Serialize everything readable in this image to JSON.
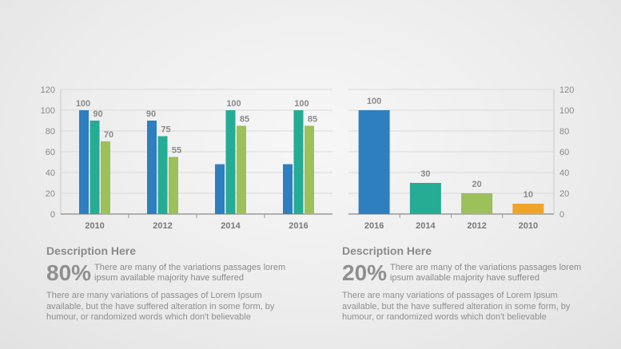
{
  "chart_data": [
    {
      "type": "bar",
      "categories": [
        "2010",
        "2012",
        "2014",
        "2016"
      ],
      "series": [
        {
          "values": [
            100,
            90,
            48,
            48
          ]
        },
        {
          "values": [
            90,
            75,
            100,
            100
          ]
        },
        {
          "values": [
            70,
            55,
            85,
            85
          ]
        }
      ],
      "data_labels": [
        [
          "100",
          "90",
          "",
          ""
        ],
        [
          "90",
          "75",
          "100",
          "100"
        ],
        [
          "70",
          "55",
          "85",
          "85"
        ]
      ],
      "colors": [
        "#2e7fc0",
        "#26ab95",
        "#9cc05a"
      ],
      "yticks": [
        "0",
        "20",
        "40",
        "60",
        "80",
        "100",
        "120"
      ],
      "ylim": [
        0,
        120
      ],
      "yaxis_side": "left",
      "grid": true,
      "title": "",
      "xlabel": "",
      "ylabel": ""
    },
    {
      "type": "bar",
      "categories": [
        "2016",
        "2014",
        "2012",
        "2010"
      ],
      "values": [
        100,
        30,
        20,
        10
      ],
      "data_labels": [
        "100",
        "30",
        "20",
        "10"
      ],
      "colors": [
        "#2e7fc0",
        "#26ab95",
        "#9cc05a",
        "#f0a52a"
      ],
      "yticks": [
        "0",
        "20",
        "40",
        "60",
        "80",
        "100",
        "120"
      ],
      "ylim": [
        0,
        120
      ],
      "yaxis_side": "right",
      "grid": true,
      "title": "",
      "xlabel": "",
      "ylabel": ""
    }
  ],
  "descriptions": [
    {
      "title": "Description Here",
      "percent": "80%",
      "stat_line1": "There are many of the variations passages lorem",
      "stat_line2": "ipsum available majority have suffered",
      "body": "There are many variations of passages  of Lorem Ipsum available, but the have suffered alteration in some  form, by humour, or randomized words which  don't believable"
    },
    {
      "title": "Description Here",
      "percent": "20%",
      "stat_line1": "There are many of the variations passages lorem",
      "stat_line2": "ipsum available majority have suffered",
      "body": "There are many variations of passages  of Lorem Ipsum available, but the have suffered alteration in some  form, by humour, or randomized words which  don't believable"
    }
  ]
}
